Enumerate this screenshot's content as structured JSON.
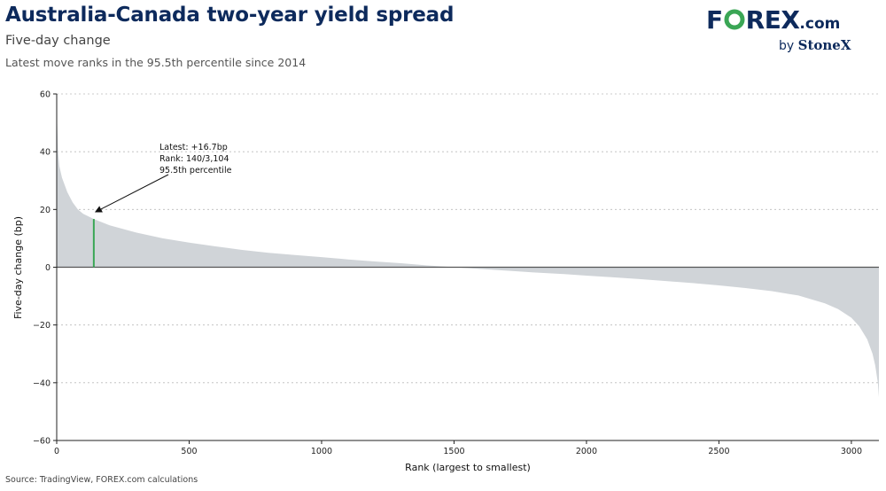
{
  "header": {
    "title": "Australia-Canada two-year yield spread",
    "subtitle": "Five-day change",
    "note": "Latest move ranks in the 95.5th percentile since 2014"
  },
  "logo": {
    "brand_part1": "F",
    "brand_part2": "REX",
    "brand_suffix": ".com",
    "byline_prefix": "by",
    "byline_name": "StoneX"
  },
  "footer": {
    "source": "Source: TradingView, FOREX.com calculations"
  },
  "colors": {
    "title": "#0d2a5c",
    "area": "#d0d4d8",
    "highlight": "#3aa655",
    "zero_line": "#555555",
    "logo_green": "#3aa655"
  },
  "chart_data": {
    "type": "area",
    "xlabel": "Rank (largest to smallest)",
    "ylabel": "Five-day change (bp)",
    "xlim": [
      0,
      3104
    ],
    "ylim": [
      -60,
      60
    ],
    "xticks": [
      0,
      500,
      1000,
      1500,
      2000,
      2500,
      3000
    ],
    "yticks": [
      60,
      40,
      20,
      0,
      -20,
      -40,
      -60
    ],
    "ytick_labels": [
      "60",
      "40",
      "20",
      "0",
      "−20",
      "−40",
      "−60"
    ],
    "grid": "horizontal dashed",
    "series": [
      {
        "x": [
          1,
          5,
          10,
          20,
          40,
          60,
          80,
          100,
          140,
          200,
          300,
          400,
          500,
          600,
          700,
          800,
          900,
          1000,
          1100,
          1200,
          1300,
          1400,
          1500,
          1600,
          1700,
          1800,
          1900,
          2000,
          2100,
          2200,
          2300,
          2400,
          2500,
          2600,
          2700,
          2800,
          2900,
          2950,
          3000,
          3030,
          3060,
          3080,
          3090,
          3095,
          3100,
          3104
        ],
        "values": [
          52,
          40,
          35,
          31,
          26,
          22.5,
          20,
          18.5,
          16.7,
          14.5,
          12,
          10,
          8.5,
          7.2,
          6,
          5,
          4.2,
          3.5,
          2.7,
          2,
          1.4,
          0.6,
          0,
          -0.6,
          -1.2,
          -1.8,
          -2.3,
          -2.9,
          -3.5,
          -4.1,
          -4.8,
          -5.5,
          -6.3,
          -7.2,
          -8.3,
          -9.8,
          -12.5,
          -14.5,
          -17.5,
          -20.5,
          -25,
          -30,
          -34,
          -37,
          -40,
          -45
        ]
      }
    ],
    "highlight": {
      "rank": 140,
      "value": 16.7
    },
    "annotation": [
      "Latest: +16.7bp",
      "Rank: 140/3,104",
      "95.5th percentile"
    ]
  }
}
